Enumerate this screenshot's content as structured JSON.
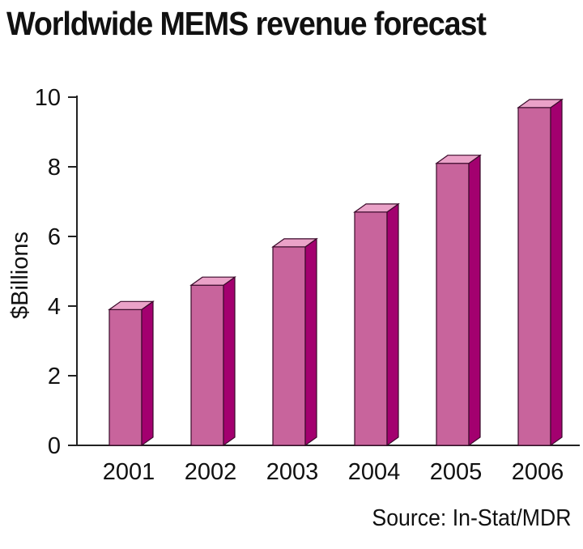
{
  "colors": {
    "bar_front": "#c8649c",
    "bar_top": "#eaa2c8",
    "bar_side": "#a3006f",
    "axis": "#222222",
    "text": "#111111"
  },
  "chart_data": {
    "type": "bar",
    "title": "Worldwide MEMS revenue forecast",
    "ylabel": "$Billions",
    "xlabel": "",
    "categories": [
      "2001",
      "2002",
      "2003",
      "2004",
      "2005",
      "2006"
    ],
    "values": [
      3.9,
      4.6,
      5.7,
      6.7,
      8.1,
      9.7
    ],
    "ylim": [
      0,
      10
    ],
    "yticks": [
      0,
      2,
      4,
      6,
      8,
      10
    ],
    "grid": false,
    "style": "3d-column",
    "source": "Source: In-Stat/MDR"
  }
}
